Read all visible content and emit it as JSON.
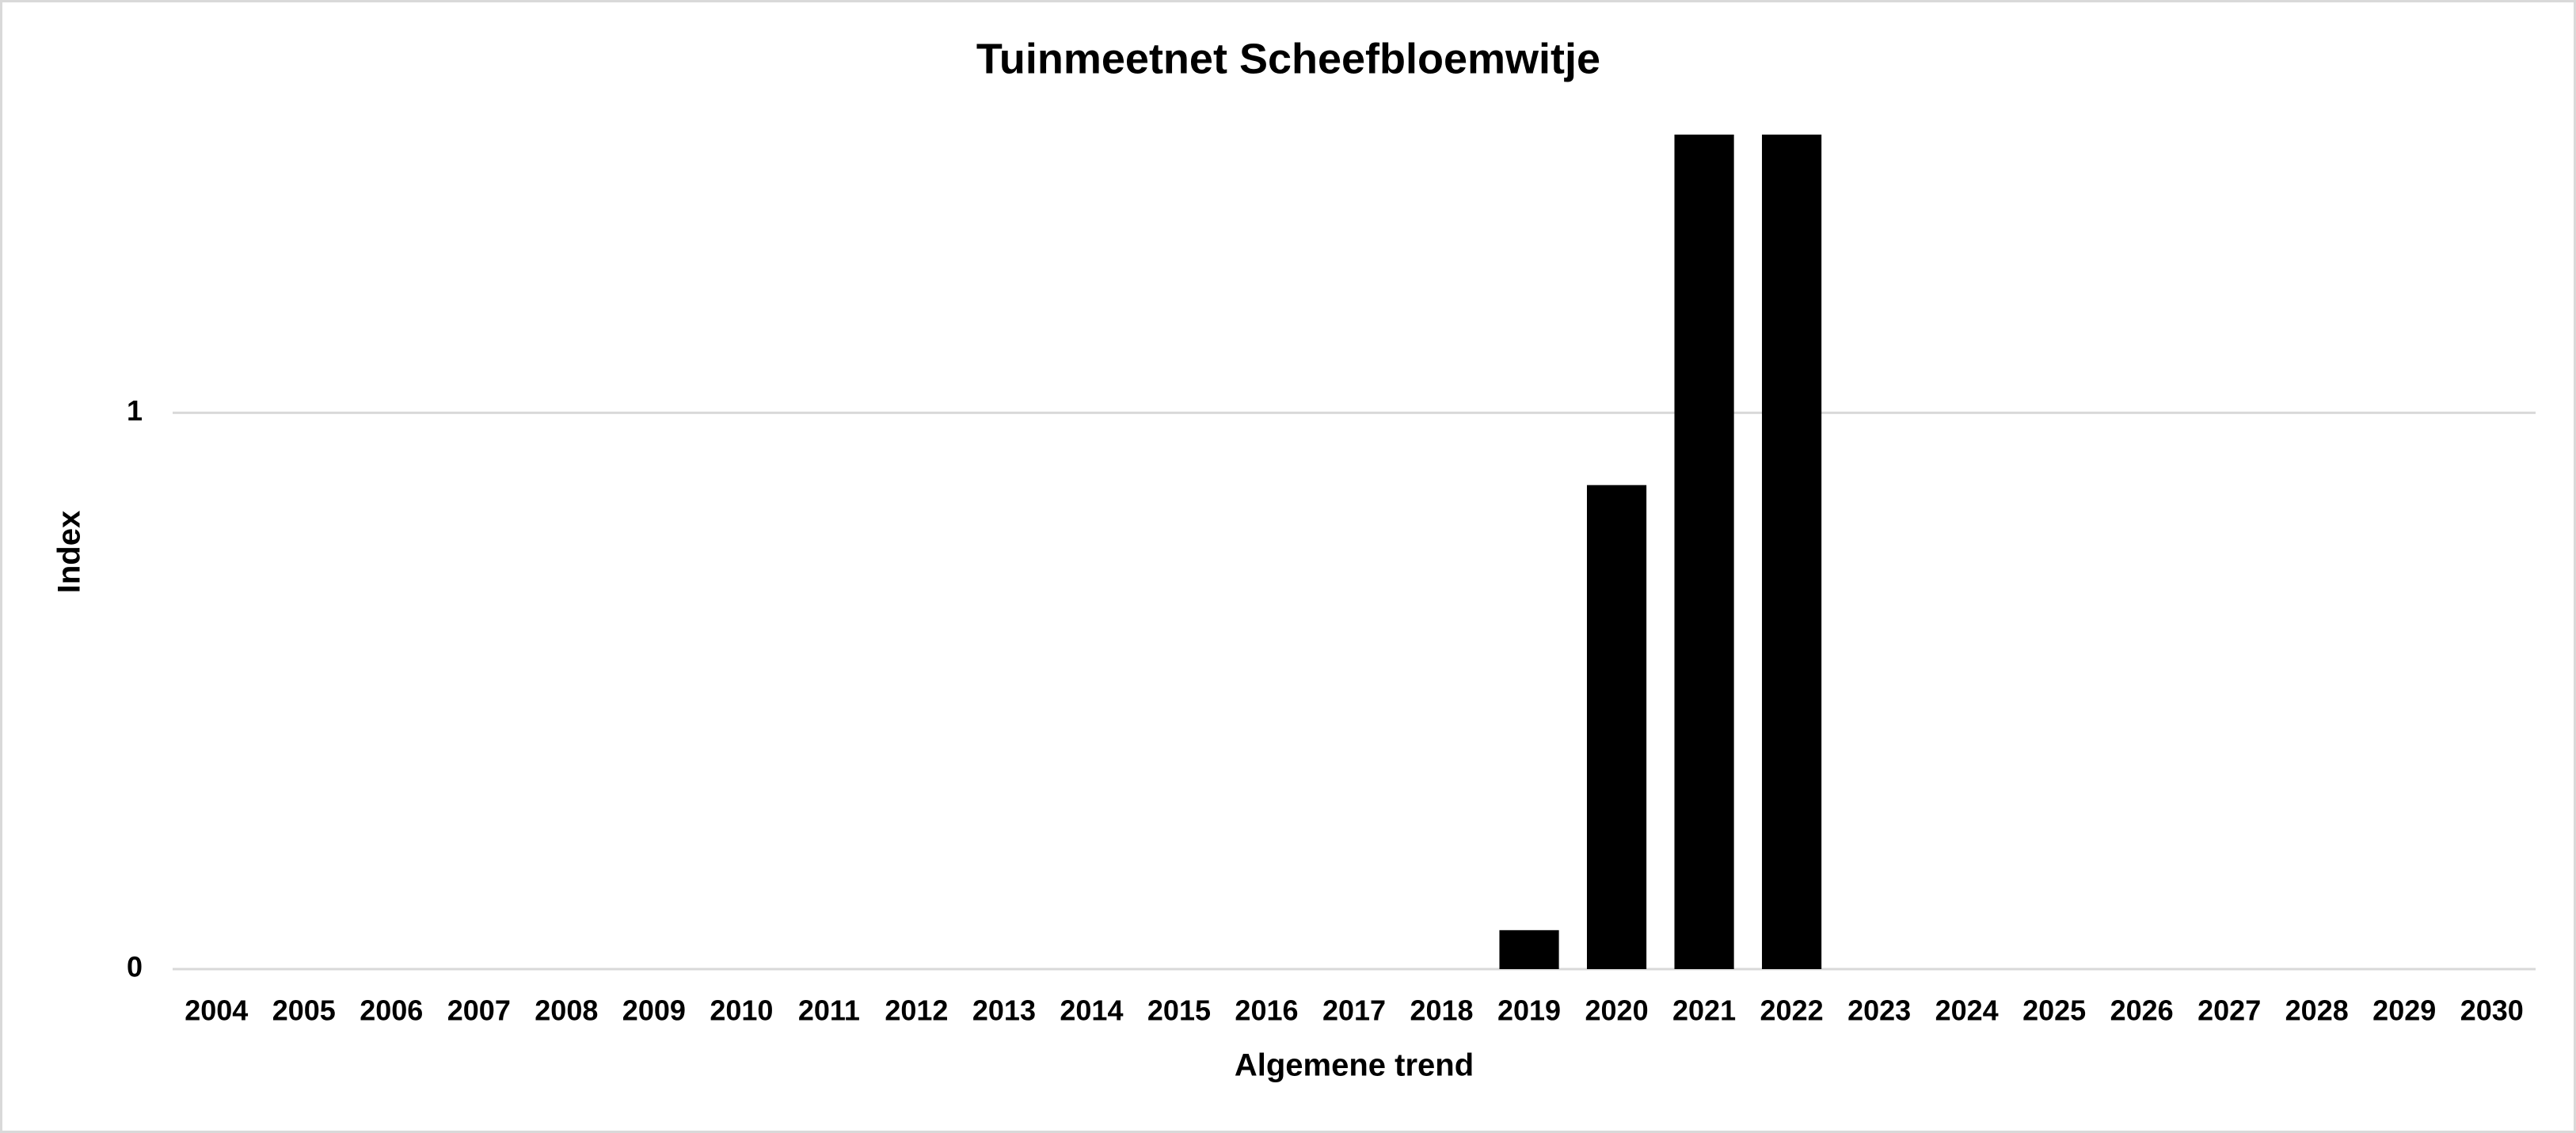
{
  "chart_data": {
    "type": "bar",
    "title": "Tuinmeetnet Scheefbloemwitje",
    "x_label": "Algemene trend",
    "y_label": "Index",
    "categories": [
      "2004",
      "2005",
      "2006",
      "2007",
      "2008",
      "2009",
      "2010",
      "2011",
      "2012",
      "2013",
      "2014",
      "2015",
      "2016",
      "2017",
      "2018",
      "2019",
      "2020",
      "2021",
      "2022",
      "2023",
      "2024",
      "2025",
      "2026",
      "2027",
      "2028",
      "2029",
      "2030"
    ],
    "values": [
      null,
      null,
      null,
      null,
      null,
      null,
      null,
      null,
      null,
      null,
      null,
      null,
      null,
      null,
      null,
      0.07,
      0.87,
      1.5,
      1.5,
      null,
      null,
      null,
      null,
      null,
      null,
      null,
      null
    ],
    "color": "#000000",
    "ylim": [
      0,
      1.5
    ],
    "yticks": [
      0,
      1
    ],
    "grid": true
  }
}
